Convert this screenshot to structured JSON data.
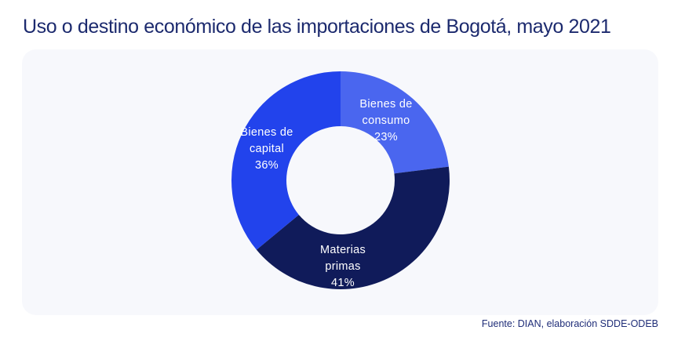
{
  "title": "Uso o destino económico de las importaciones de Bogotá, mayo 2021",
  "source": "Fuente: DIAN, elaboración SDDE-ODEB",
  "colors": {
    "page_background": "#ffffff",
    "panel_background": "#f7f8fc",
    "title_text": "#1c2a6e",
    "source_text": "#1f2d78",
    "slice_label_text": "#ffffff"
  },
  "chart_data": {
    "type": "pie",
    "subtype": "donut",
    "title": "Uso o destino económico de las importaciones de Bogotá, mayo 2021",
    "start_angle_deg": 0,
    "direction": "clockwise",
    "categories": [
      "Bienes de consumo",
      "Materias primas",
      "Bienes de capital"
    ],
    "values": [
      23,
      41,
      36
    ],
    "colors": [
      "#4a66ef",
      "#101b5a",
      "#2243ec"
    ],
    "legend": "none",
    "slices": [
      {
        "name": "Bienes de consumo",
        "value": 23,
        "color": "#4a66ef",
        "line1": "Bienes de",
        "line2": "consumo",
        "pct_label": "23%"
      },
      {
        "name": "Materias primas",
        "value": 41,
        "color": "#101b5a",
        "line1": "Materias",
        "line2": "primas",
        "pct_label": "41%"
      },
      {
        "name": "Bienes de capital",
        "value": 36,
        "color": "#2243ec",
        "line1": "Bienes de",
        "line2": "capital",
        "pct_label": "36%"
      }
    ]
  }
}
